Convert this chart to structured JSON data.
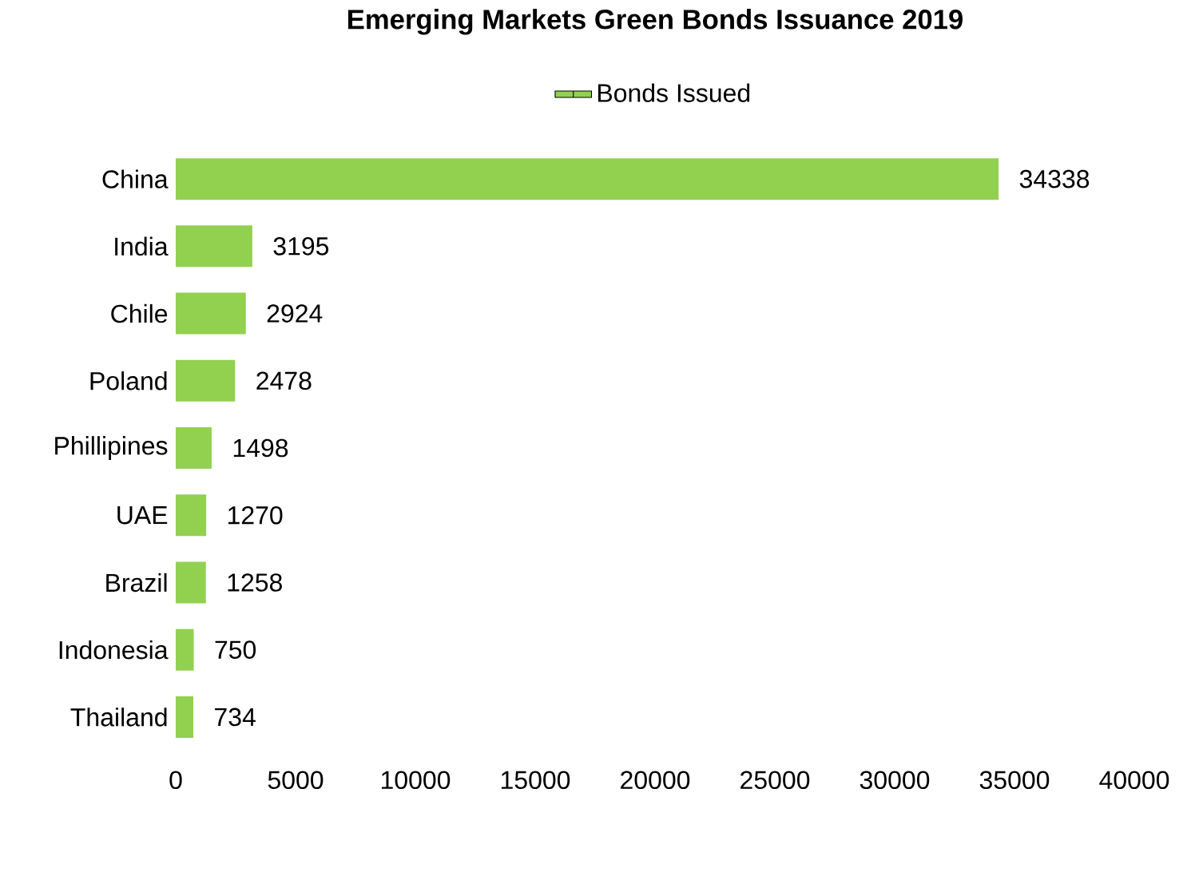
{
  "chart_data": {
    "type": "bar",
    "orientation": "horizontal",
    "title": "Emerging Markets Green Bonds Issuance 2019",
    "categories": [
      "China",
      "India",
      "Chile",
      "Poland",
      "Phillipines",
      "UAE",
      "Brazil",
      "Indonesia",
      "Thailand"
    ],
    "series": [
      {
        "name": "Bonds Issued",
        "color": "#92d050",
        "values": [
          34338,
          3195,
          2924,
          2478,
          1498,
          1270,
          1258,
          750,
          734
        ]
      }
    ],
    "xlim": [
      0,
      40000
    ],
    "xticks": [
      0,
      5000,
      10000,
      15000,
      20000,
      25000,
      30000,
      35000,
      40000
    ],
    "data_labels": true,
    "legend": "top",
    "grid": false
  }
}
